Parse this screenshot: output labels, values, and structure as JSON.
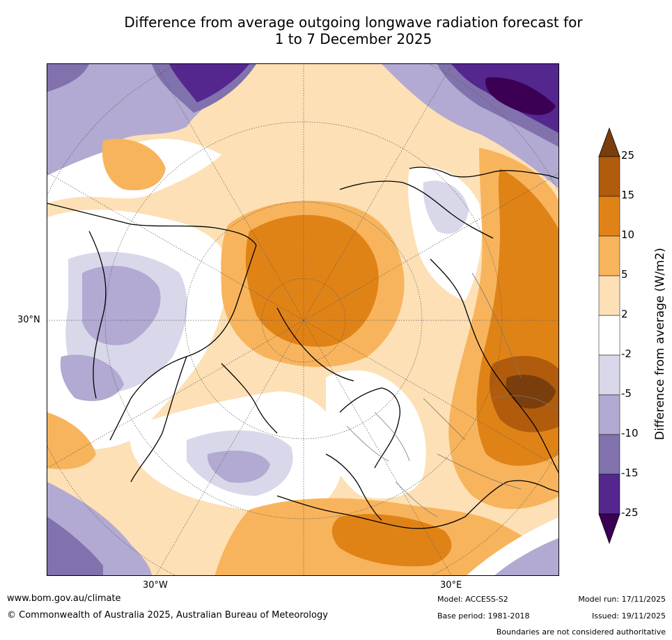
{
  "title_line1": "Difference from average outgoing longwave radiation forecast for",
  "title_line2": "1 to 7 December 2025",
  "lat_label": "30°N",
  "lon_labels": {
    "west": "30°W",
    "east": "30°E"
  },
  "colorbar": {
    "label": "Difference from average (W/m2)",
    "ticks": [
      "25",
      "15",
      "10",
      "5",
      "2",
      "-2",
      "-5",
      "-10",
      "-15",
      "-25"
    ],
    "colors": {
      "c_25plus": "#7a3e0c",
      "c_15_25": "#b05c0c",
      "c_10_15": "#e08317",
      "c_5_10": "#f8b45c",
      "c_2_5": "#fde0b6",
      "c_m2_2": "#ffffff",
      "c_m5_m2": "#d8d8ea",
      "c_m10_m5": "#b2aad2",
      "c_m15_m10": "#8172ad",
      "c_m25_m15": "#54278f",
      "c_m25minus": "#3b0054"
    }
  },
  "footer": {
    "website": "www.bom.gov.au/climate",
    "copyright": "© Commonwealth of Australia 2025, Australian Bureau of Meteorology",
    "model": "Model: ACCESS-S2",
    "base_period": "Base period: 1981-2018",
    "model_run": "Model run: 17/11/2025",
    "issued": "Issued: 19/11/2025",
    "disclaimer": "Boundaries are not considered authoritative"
  }
}
